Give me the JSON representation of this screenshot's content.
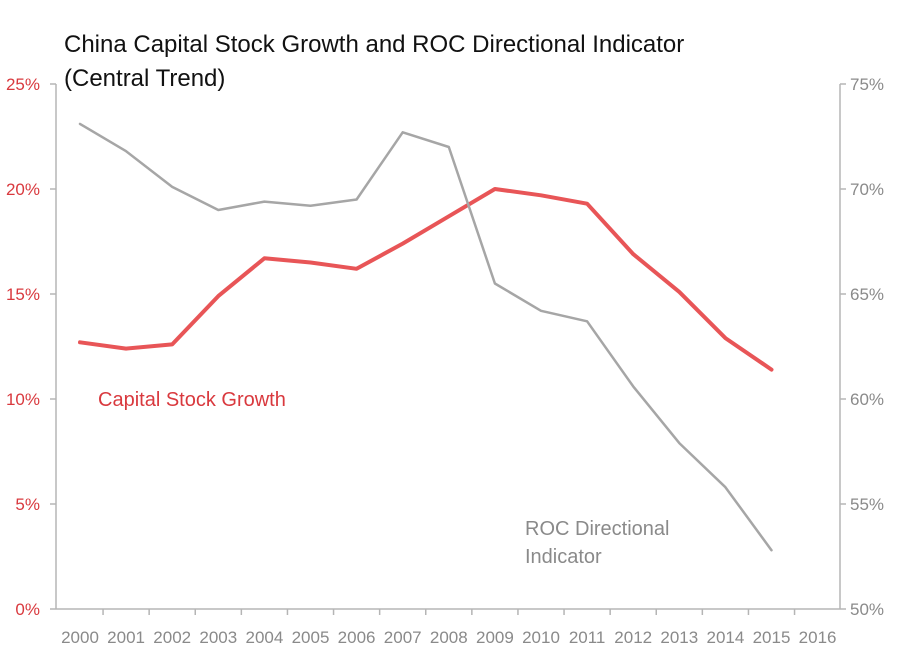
{
  "chart_data": {
    "type": "line",
    "title_line1": "China Capital Stock Growth and ROC Directional Indicator",
    "title_line2": "(Central Trend)",
    "categories": [
      "2000",
      "2001",
      "2002",
      "2003",
      "2004",
      "2005",
      "2006",
      "2007",
      "2008",
      "2009",
      "2010",
      "2011",
      "2012",
      "2013",
      "2014",
      "2015",
      "2016"
    ],
    "y_left": {
      "min": 0,
      "max": 25,
      "ticks": [
        0,
        5,
        10,
        15,
        20,
        25
      ],
      "tick_labels": [
        "0%",
        "5%",
        "10%",
        "15%",
        "20%",
        "25%"
      ],
      "color": "#d9393e"
    },
    "y_right": {
      "min": 50,
      "max": 75,
      "ticks": [
        50,
        55,
        60,
        65,
        70,
        75
      ],
      "tick_labels": [
        "50%",
        "55%",
        "60%",
        "65%",
        "70%",
        "75%"
      ],
      "color": "#8a8a8a"
    },
    "grid": false,
    "series": [
      {
        "name": "Capital Stock Growth",
        "axis": "left",
        "color": "#e85557",
        "x": [
          "2000",
          "2001",
          "2002",
          "2003",
          "2004",
          "2005",
          "2006",
          "2007",
          "2008",
          "2009",
          "2010",
          "2011",
          "2012",
          "2013",
          "2014",
          "2015"
        ],
        "values": [
          12.7,
          12.4,
          12.6,
          14.9,
          16.7,
          16.5,
          16.2,
          17.4,
          18.7,
          20.0,
          19.7,
          19.3,
          16.9,
          15.1,
          12.9,
          11.4
        ]
      },
      {
        "name": "ROC Directional Indicator",
        "axis": "right",
        "color": "#a6a6a6",
        "x": [
          "2000",
          "2001",
          "2002",
          "2003",
          "2004",
          "2005",
          "2006",
          "2007",
          "2008",
          "2009",
          "2010",
          "2011",
          "2012",
          "2013",
          "2014",
          "2015"
        ],
        "values": [
          73.1,
          71.8,
          70.1,
          69.0,
          69.4,
          69.2,
          69.5,
          72.7,
          72.0,
          65.5,
          64.2,
          63.7,
          60.6,
          57.9,
          55.8,
          52.8
        ]
      }
    ],
    "labels": {
      "capital": "Capital Stock Growth",
      "roc_line1": "ROC Directional",
      "roc_line2": "Indicator"
    }
  }
}
